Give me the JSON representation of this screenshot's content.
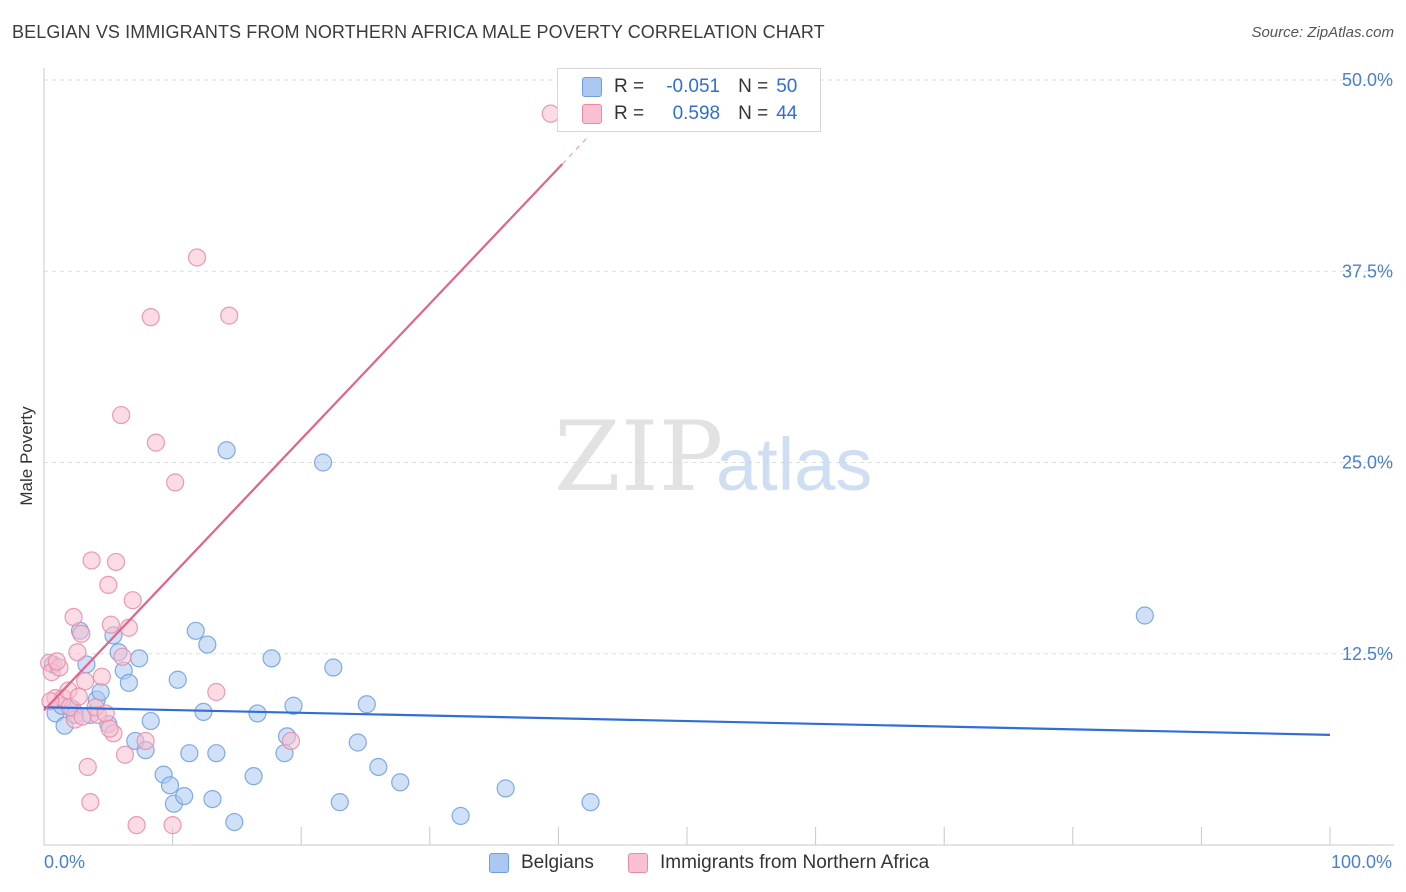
{
  "title": "BELGIAN VS IMMIGRANTS FROM NORTHERN AFRICA MALE POVERTY CORRELATION CHART",
  "source": "Source: ZipAtlas.com",
  "watermark": {
    "zip": "ZIP",
    "atlas": "atlas"
  },
  "legend": {
    "r_label": "R =",
    "n_label": "N =",
    "rows": [
      {
        "r": "-0.051",
        "n": "50",
        "color": "#aac8f0",
        "border": "#6d9de0"
      },
      {
        "r": "0.598",
        "n": "44",
        "color": "#f8c0d0",
        "border": "#e98aa8"
      }
    ]
  },
  "bottom_legend": {
    "series1": "Belgians",
    "series2": "Immigrants from Northern Africa"
  },
  "chart_data": {
    "type": "scatter",
    "title": "BELGIAN VS IMMIGRANTS FROM NORTHERN AFRICA MALE POVERTY CORRELATION CHART",
    "xlabel": "",
    "ylabel": "Male Poverty",
    "xlim": [
      0,
      100
    ],
    "ylim": [
      0,
      50
    ],
    "x_tick_labels": {
      "min": "0.0%",
      "max": "100.0%"
    },
    "y_ticks": [
      12.5,
      25.0,
      37.5,
      50.0
    ],
    "y_tick_labels": [
      "12.5%",
      "25.0%",
      "37.5%",
      "50.0%"
    ],
    "grid": true,
    "series": [
      {
        "name": "Belgians",
        "color": "#6d9de0",
        "fill": "#aac8f0",
        "trend_color": "#2f6fd4",
        "trend": {
          "x0": 0,
          "y0": 9.0,
          "x1": 100,
          "y1": 7.2
        },
        "points": [
          [
            0.7,
            11.8
          ],
          [
            0.9,
            8.6
          ],
          [
            1.4,
            9.1
          ],
          [
            1.6,
            7.8
          ],
          [
            2.2,
            8.9
          ],
          [
            2.4,
            8.5
          ],
          [
            2.8,
            14.0
          ],
          [
            3.3,
            11.8
          ],
          [
            3.6,
            8.5
          ],
          [
            4.1,
            9.5
          ],
          [
            4.4,
            10.0
          ],
          [
            5.0,
            7.9
          ],
          [
            5.4,
            13.7
          ],
          [
            5.8,
            12.6
          ],
          [
            6.2,
            11.4
          ],
          [
            6.6,
            10.6
          ],
          [
            7.1,
            6.8
          ],
          [
            7.4,
            12.2
          ],
          [
            7.9,
            6.2
          ],
          [
            8.3,
            8.1
          ],
          [
            9.3,
            4.6
          ],
          [
            9.8,
            3.9
          ],
          [
            10.1,
            2.7
          ],
          [
            10.4,
            10.8
          ],
          [
            10.9,
            3.2
          ],
          [
            11.3,
            6.0
          ],
          [
            11.8,
            14.0
          ],
          [
            12.4,
            8.7
          ],
          [
            12.7,
            13.1
          ],
          [
            13.1,
            3.0
          ],
          [
            13.4,
            6.0
          ],
          [
            14.2,
            25.8
          ],
          [
            14.8,
            1.5
          ],
          [
            16.3,
            4.5
          ],
          [
            16.6,
            8.6
          ],
          [
            17.7,
            12.2
          ],
          [
            18.7,
            6.0
          ],
          [
            18.9,
            7.1
          ],
          [
            19.4,
            9.1
          ],
          [
            21.7,
            25.0
          ],
          [
            22.5,
            11.6
          ],
          [
            23.0,
            2.8
          ],
          [
            24.4,
            6.7
          ],
          [
            25.1,
            9.2
          ],
          [
            26.0,
            5.1
          ],
          [
            27.7,
            4.1
          ],
          [
            32.4,
            1.9
          ],
          [
            35.9,
            3.7
          ],
          [
            42.5,
            2.8
          ],
          [
            85.6,
            15.0
          ]
        ]
      },
      {
        "name": "Immigrants from Northern Africa",
        "color": "#e98aa8",
        "fill": "#f8c0d0",
        "trend_color": "#e0638c",
        "trend": {
          "x0": 0,
          "y0": 8.8,
          "x1": 40.3,
          "y1": 44.5
        },
        "trend_dashed_to": {
          "x": 42.2,
          "y": 46.2
        },
        "points": [
          [
            0.4,
            11.9
          ],
          [
            0.6,
            11.3
          ],
          [
            0.9,
            9.6
          ],
          [
            1.2,
            11.6
          ],
          [
            1.5,
            9.6
          ],
          [
            1.9,
            10.1
          ],
          [
            2.3,
            14.9
          ],
          [
            2.4,
            8.2
          ],
          [
            2.6,
            12.6
          ],
          [
            2.9,
            13.8
          ],
          [
            3.2,
            10.7
          ],
          [
            3.4,
            5.1
          ],
          [
            3.6,
            2.8
          ],
          [
            3.7,
            18.6
          ],
          [
            4.2,
            8.5
          ],
          [
            4.5,
            11.0
          ],
          [
            5.0,
            17.0
          ],
          [
            5.2,
            14.4
          ],
          [
            5.4,
            7.3
          ],
          [
            5.6,
            18.5
          ],
          [
            6.0,
            28.1
          ],
          [
            6.3,
            5.9
          ],
          [
            6.6,
            14.2
          ],
          [
            6.9,
            16.0
          ],
          [
            7.2,
            1.3
          ],
          [
            7.9,
            6.8
          ],
          [
            8.3,
            34.5
          ],
          [
            8.7,
            26.3
          ],
          [
            10.0,
            1.3
          ],
          [
            10.2,
            23.7
          ],
          [
            11.9,
            38.4
          ],
          [
            13.4,
            10.0
          ],
          [
            14.4,
            34.6
          ],
          [
            19.2,
            6.8
          ],
          [
            39.4,
            47.8
          ],
          [
            0.5,
            9.4
          ],
          [
            1.0,
            12.0
          ],
          [
            2.0,
            9.0
          ],
          [
            2.7,
            9.7
          ],
          [
            3.0,
            8.4
          ],
          [
            4.0,
            9.0
          ],
          [
            4.8,
            8.6
          ],
          [
            5.1,
            7.6
          ],
          [
            6.1,
            12.3
          ]
        ]
      }
    ]
  }
}
